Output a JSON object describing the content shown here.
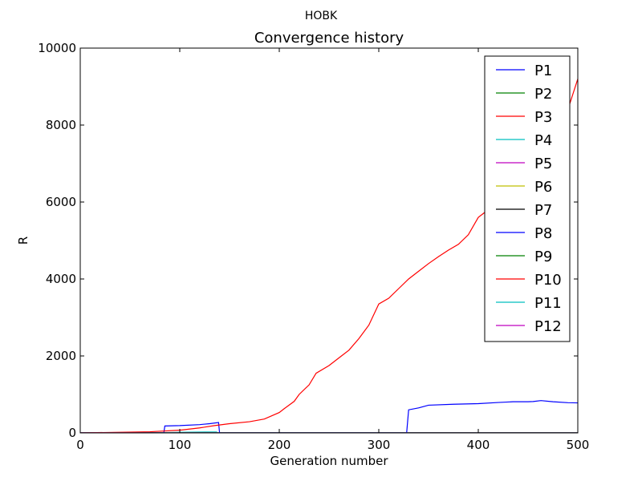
{
  "suptitle": "HOBK",
  "chart_data": {
    "type": "line",
    "title": "Convergence history",
    "xlabel": "Generation number",
    "ylabel": "R",
    "xlim": [
      0,
      500
    ],
    "ylim": [
      0,
      10000
    ],
    "xticks": [
      0,
      100,
      200,
      300,
      400,
      500
    ],
    "yticks": [
      0,
      2000,
      4000,
      6000,
      8000,
      10000
    ],
    "grid": false,
    "legend_position": "top-right",
    "series": [
      {
        "name": "P1",
        "color": "#0000ff",
        "points": [
          [
            0,
            0
          ],
          [
            500,
            0
          ]
        ]
      },
      {
        "name": "P2",
        "color": "#008000",
        "points": [
          [
            0,
            0
          ],
          [
            500,
            0
          ]
        ]
      },
      {
        "name": "P3",
        "color": "#ff0000",
        "points": [
          [
            0,
            0
          ],
          [
            500,
            0
          ]
        ]
      },
      {
        "name": "P4",
        "color": "#00bfbf",
        "points": [
          [
            0,
            0
          ],
          [
            70,
            0
          ],
          [
            100,
            15
          ],
          [
            130,
            25
          ],
          [
            137,
            25
          ],
          [
            138,
            0
          ],
          [
            500,
            0
          ]
        ]
      },
      {
        "name": "P5",
        "color": "#bf00bf",
        "points": [
          [
            0,
            0
          ],
          [
            500,
            0
          ]
        ]
      },
      {
        "name": "P6",
        "color": "#bfbf00",
        "points": [
          [
            0,
            0
          ],
          [
            500,
            0
          ]
        ]
      },
      {
        "name": "P7",
        "color": "#000000",
        "points": [
          [
            0,
            0
          ],
          [
            500,
            0
          ]
        ]
      },
      {
        "name": "P8",
        "color": "#0000ff",
        "points": [
          [
            0,
            0
          ],
          [
            84,
            0
          ],
          [
            85,
            180
          ],
          [
            100,
            190
          ],
          [
            120,
            215
          ],
          [
            130,
            240
          ],
          [
            139,
            270
          ],
          [
            140,
            0
          ],
          [
            328,
            0
          ],
          [
            330,
            600
          ],
          [
            340,
            650
          ],
          [
            350,
            720
          ],
          [
            375,
            745
          ],
          [
            400,
            760
          ],
          [
            420,
            790
          ],
          [
            435,
            810
          ],
          [
            450,
            810
          ],
          [
            455,
            815
          ],
          [
            463,
            840
          ],
          [
            475,
            810
          ],
          [
            490,
            785
          ],
          [
            500,
            780
          ]
        ]
      },
      {
        "name": "P9",
        "color": "#008000",
        "points": [
          [
            0,
            0
          ],
          [
            500,
            0
          ]
        ]
      },
      {
        "name": "P10",
        "color": "#ff0000",
        "points": [
          [
            0,
            0
          ],
          [
            70,
            30
          ],
          [
            100,
            70
          ],
          [
            120,
            130
          ],
          [
            135,
            190
          ],
          [
            150,
            240
          ],
          [
            170,
            290
          ],
          [
            185,
            360
          ],
          [
            200,
            530
          ],
          [
            205,
            630
          ],
          [
            215,
            820
          ],
          [
            220,
            1000
          ],
          [
            230,
            1250
          ],
          [
            237,
            1550
          ],
          [
            250,
            1750
          ],
          [
            260,
            1950
          ],
          [
            270,
            2150
          ],
          [
            280,
            2450
          ],
          [
            290,
            2800
          ],
          [
            300,
            3350
          ],
          [
            310,
            3500
          ],
          [
            320,
            3750
          ],
          [
            330,
            4000
          ],
          [
            340,
            4200
          ],
          [
            350,
            4400
          ],
          [
            360,
            4580
          ],
          [
            370,
            4750
          ],
          [
            380,
            4900
          ],
          [
            390,
            5150
          ],
          [
            400,
            5600
          ],
          [
            405,
            5700
          ],
          [
            420,
            6000
          ],
          [
            440,
            6500
          ],
          [
            460,
            7000
          ],
          [
            480,
            7800
          ],
          [
            490,
            8400
          ],
          [
            500,
            9200
          ]
        ]
      },
      {
        "name": "P11",
        "color": "#00bfbf",
        "points": [
          [
            0,
            0
          ],
          [
            500,
            0
          ]
        ]
      },
      {
        "name": "P12",
        "color": "#bf00bf",
        "points": [
          [
            0,
            0
          ],
          [
            500,
            0
          ]
        ]
      }
    ]
  }
}
